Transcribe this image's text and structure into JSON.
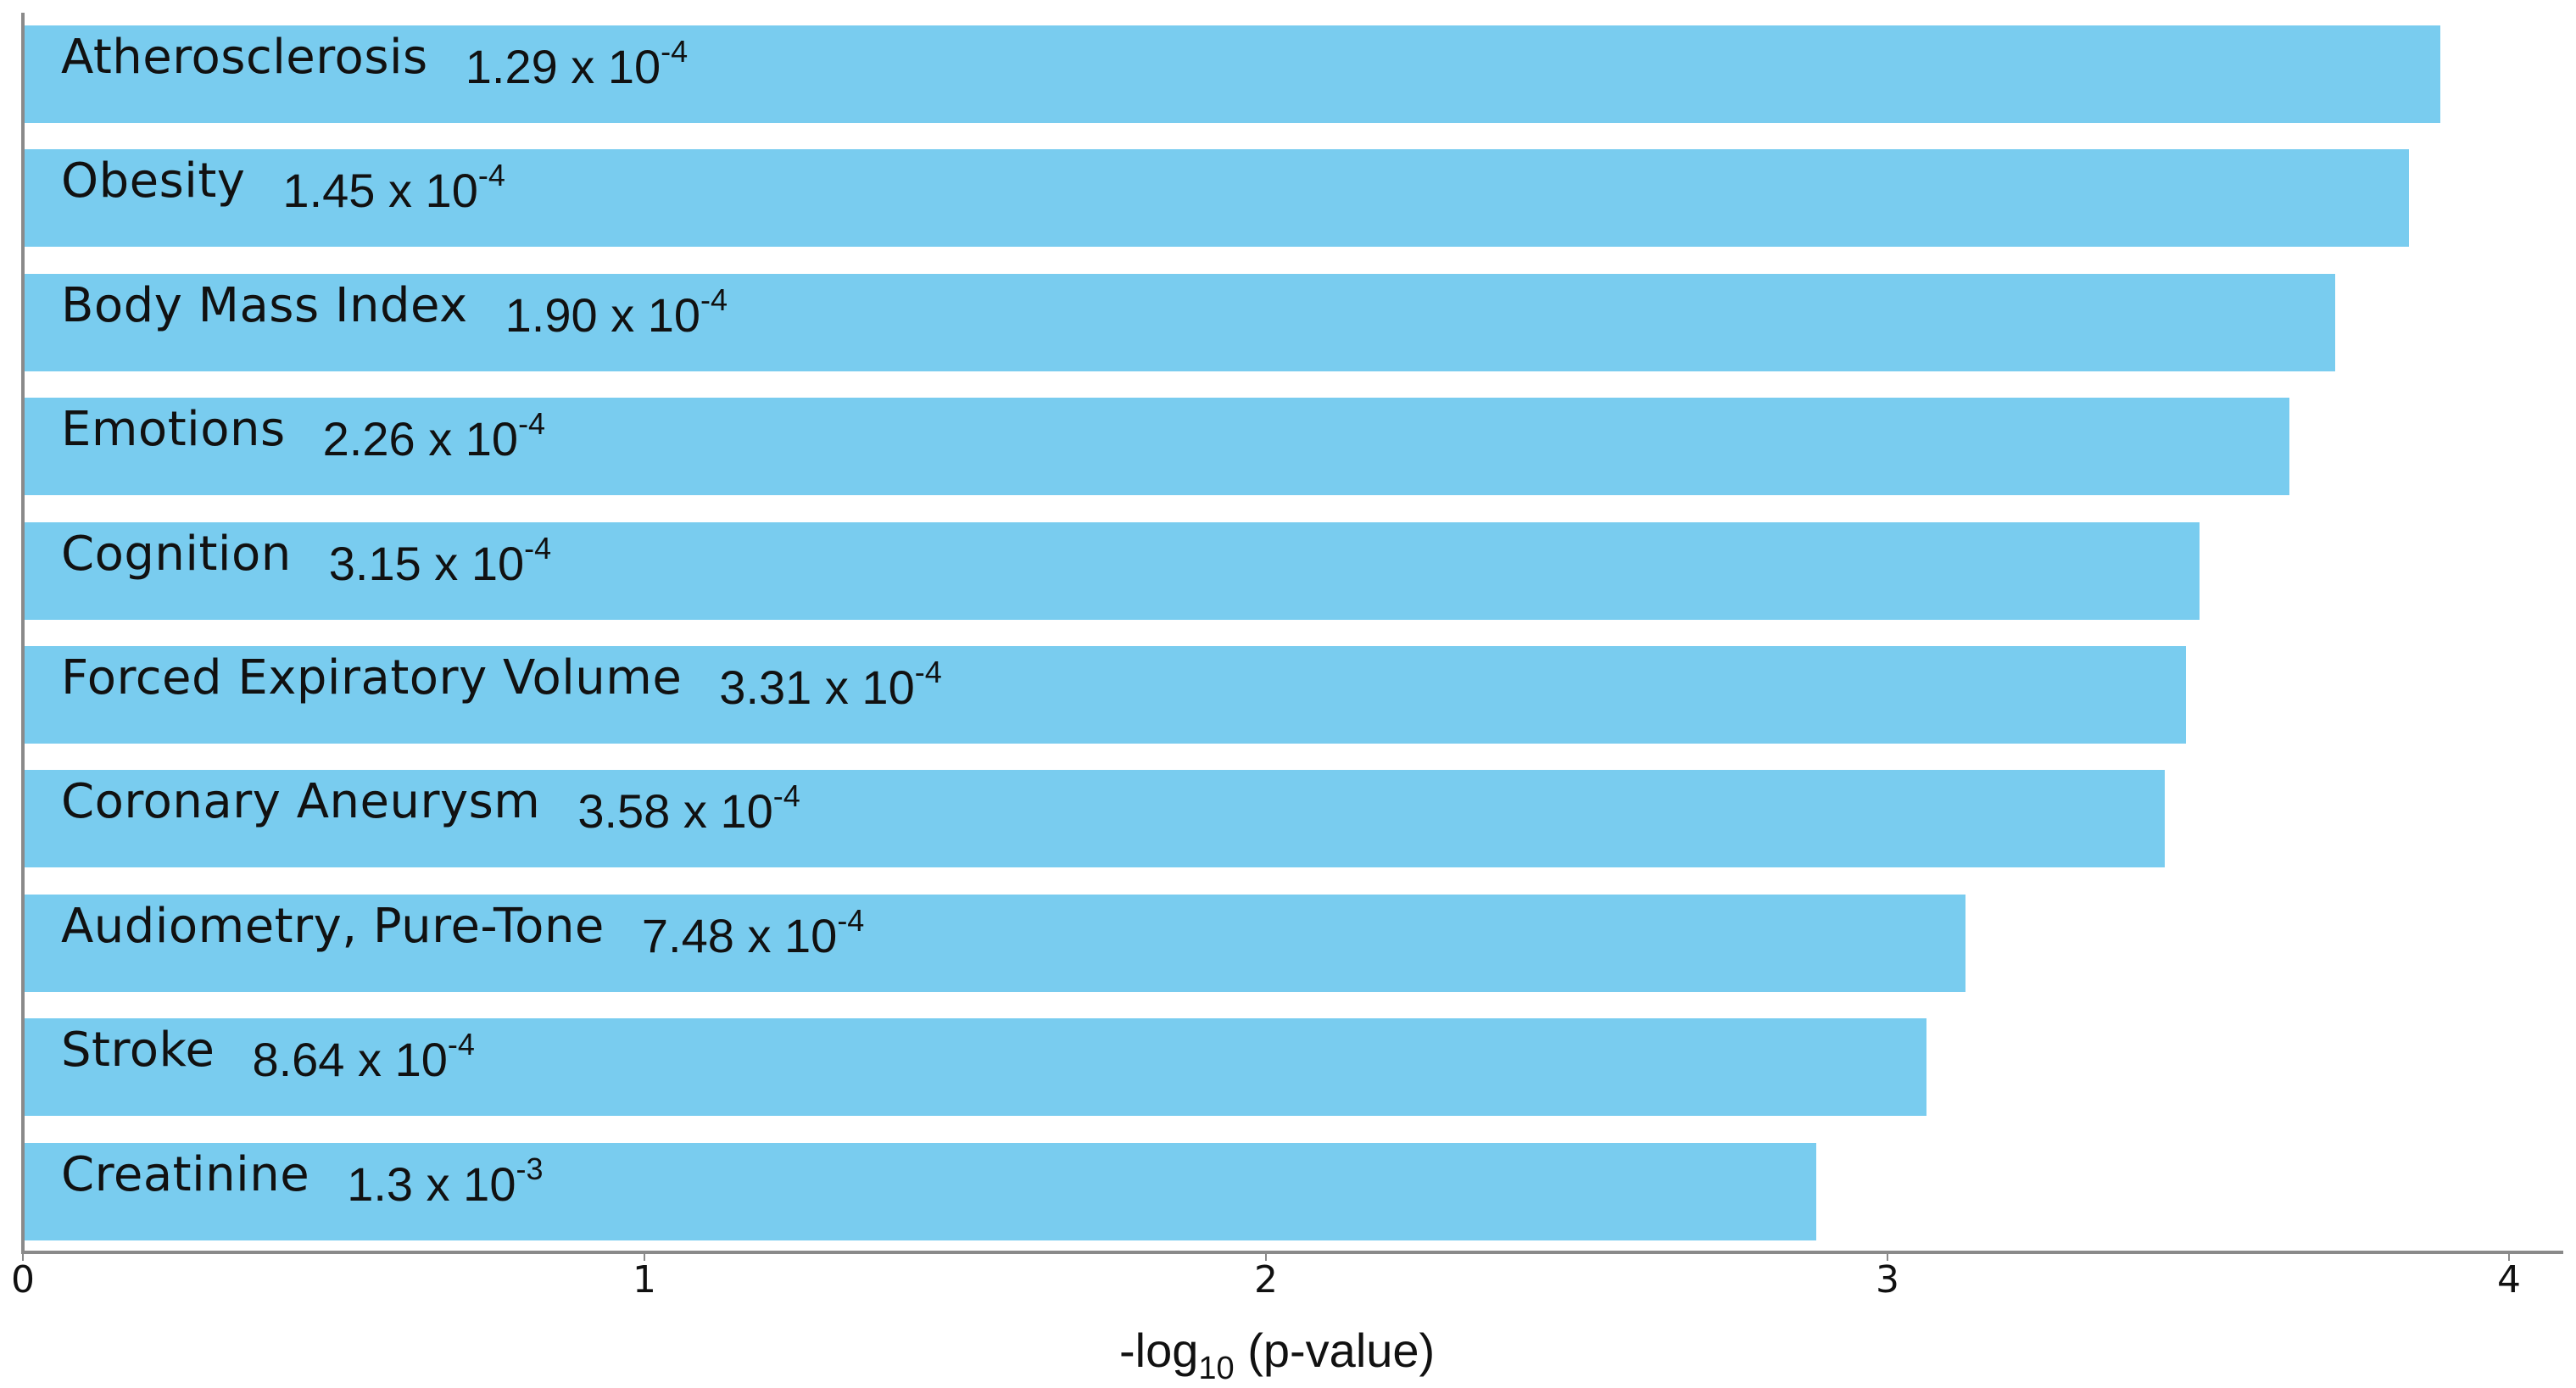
{
  "chart_data": {
    "type": "bar",
    "orientation": "horizontal",
    "title": "",
    "xlabel": "-log10 (p-value)",
    "xlabel_main": "-log",
    "xlabel_sub": "10",
    "xlabel_rest": " (p-value)",
    "ylabel": "",
    "xlim": [
      0,
      4.08
    ],
    "xticks": [
      0,
      1,
      2,
      3,
      4
    ],
    "grid": false,
    "legend": null,
    "bar_color": "#79ccef",
    "categories": [
      "Atherosclerosis",
      "Obesity",
      "Body Mass Index",
      "Emotions",
      "Cognition",
      "Forced Expiratory Volume",
      "Coronary Aneurysm",
      "Audiometry, Pure-Tone",
      "Stroke",
      "Creatinine"
    ],
    "values": [
      3.889,
      3.839,
      3.721,
      3.646,
      3.502,
      3.48,
      3.446,
      3.126,
      3.063,
      2.886
    ],
    "p_values": [
      "1.29 x 10-4",
      "1.45 x 10-4",
      "1.90 x 10-4",
      "2.26 x 10-4",
      "3.15 x 10-4",
      "3.31 x 10-4",
      "3.58 x 10-4",
      "7.48 x 10-4",
      "8.64 x 10-4",
      "1.3 x 10-3"
    ],
    "bars": [
      {
        "name": "Atherosclerosis",
        "mantissa": "1.29",
        "times": "x",
        "base": "10",
        "exp": "-4",
        "value": 3.889
      },
      {
        "name": "Obesity",
        "mantissa": "1.45",
        "times": "x",
        "base": "10",
        "exp": "-4",
        "value": 3.839
      },
      {
        "name": "Body Mass Index",
        "mantissa": "1.90",
        "times": "x",
        "base": "10",
        "exp": "-4",
        "value": 3.721
      },
      {
        "name": "Emotions",
        "mantissa": "2.26",
        "times": "x",
        "base": "10",
        "exp": "-4",
        "value": 3.646
      },
      {
        "name": "Cognition",
        "mantissa": "3.15",
        "times": "x",
        "base": "10",
        "exp": "-4",
        "value": 3.502
      },
      {
        "name": "Forced Expiratory Volume",
        "mantissa": "3.31",
        "times": "x",
        "base": "10",
        "exp": "-4",
        "value": 3.48
      },
      {
        "name": "Coronary Aneurysm",
        "mantissa": "3.58",
        "times": "x",
        "base": "10",
        "exp": "-4",
        "value": 3.446
      },
      {
        "name": "Audiometry, Pure-Tone",
        "mantissa": "7.48",
        "times": "x",
        "base": "10",
        "exp": "-4",
        "value": 3.126
      },
      {
        "name": "Stroke",
        "mantissa": "8.64",
        "times": "x",
        "base": "10",
        "exp": "-4",
        "value": 3.063
      },
      {
        "name": "Creatinine",
        "mantissa": "1.3",
        "times": "x",
        "base": "10",
        "exp": "-3",
        "value": 2.886
      }
    ],
    "tick_labels": [
      "0",
      "1",
      "2",
      "3",
      "4"
    ]
  }
}
